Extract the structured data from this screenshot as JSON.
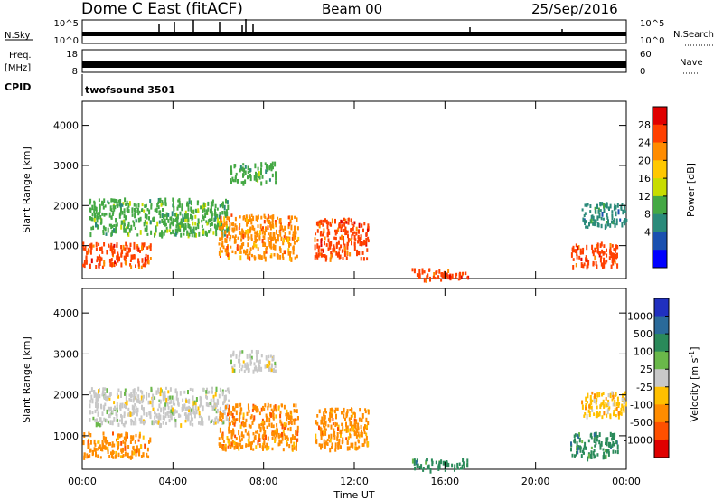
{
  "header": {
    "title": "Dome C East (fitACF)",
    "beam": "Beam 00",
    "date": "25/Sep/2016"
  },
  "small_panels": {
    "nsky_label": "N.Sky",
    "nsky_ticks": [
      "10^5",
      "10^0"
    ],
    "nsearch_label": "N.Search",
    "nsearch_ticks": [
      "10^5",
      "10^0"
    ],
    "freq_label": "Freq.",
    "freq_unit": "[MHz]",
    "freq_ticks": [
      "18",
      "8"
    ],
    "nave_label": "Nave",
    "nave_ticks": [
      "60",
      "0"
    ],
    "cpid_label": "CPID",
    "cpid_value": "twofsound 3501"
  },
  "chart_data": [
    {
      "type": "heatmap",
      "name": "power-panel",
      "ylabel": "Slant Range [km]",
      "ylim": [
        180,
        4600
      ],
      "yticks": [
        1000,
        2000,
        3000,
        4000
      ],
      "xlim": [
        0,
        24
      ],
      "colorbar": {
        "label": "Power [dB]",
        "ticks": [
          "28",
          "24",
          "20",
          "16",
          "12",
          "8",
          "4"
        ],
        "colors": [
          "#e00000",
          "#ff4000",
          "#ff8c00",
          "#ffc800",
          "#c8dc00",
          "#44a844",
          "#2a8a7a",
          "#1a50b0",
          "#0000ff"
        ]
      },
      "regions": [
        {
          "t0": 0.0,
          "t1": 3.0,
          "r0": 500,
          "r1": 1100,
          "value": 26
        },
        {
          "t0": 0.3,
          "t1": 6.5,
          "r0": 1300,
          "r1": 2200,
          "value": 14
        },
        {
          "t0": 6.0,
          "t1": 9.5,
          "r0": 700,
          "r1": 1800,
          "value": 24
        },
        {
          "t0": 6.5,
          "t1": 8.5,
          "r0": 2600,
          "r1": 3100,
          "value": 12
        },
        {
          "t0": 10.2,
          "t1": 12.6,
          "r0": 700,
          "r1": 1700,
          "value": 27
        },
        {
          "t0": 14.5,
          "t1": 17.0,
          "r0": 180,
          "r1": 450,
          "value": 28
        },
        {
          "t0": 21.5,
          "t1": 23.6,
          "r0": 500,
          "r1": 1100,
          "value": 26
        },
        {
          "t0": 22.0,
          "t1": 24.0,
          "r0": 1500,
          "r1": 2100,
          "value": 10
        }
      ]
    },
    {
      "type": "heatmap",
      "name": "velocity-panel",
      "ylabel": "Slant Range [km]",
      "ylim": [
        180,
        4600
      ],
      "yticks": [
        1000,
        2000,
        3000,
        4000
      ],
      "xlim": [
        0,
        24
      ],
      "xticks": [
        "00:00",
        "04:00",
        "08:00",
        "12:00",
        "16:00",
        "20:00",
        "00:00"
      ],
      "xlabel": "Time UT",
      "colorbar": {
        "label": "Velocity [m s^-1]",
        "ticks": [
          "1000",
          "500",
          "100",
          "25",
          "-25",
          "-100",
          "-500",
          "-1000"
        ],
        "colors": [
          "#2030c0",
          "#2a6a9a",
          "#2a8a5a",
          "#6ab84a",
          "#c8c8c8",
          "#ffc000",
          "#ff8c00",
          "#ff5000",
          "#e00000"
        ]
      },
      "regions": [
        {
          "t0": 0.0,
          "t1": 3.0,
          "r0": 500,
          "r1": 1100,
          "value": -300
        },
        {
          "t0": 0.3,
          "t1": 6.5,
          "r0": 1300,
          "r1": 2200,
          "value": 0
        },
        {
          "t0": 6.0,
          "t1": 9.5,
          "r0": 700,
          "r1": 1800,
          "value": -300
        },
        {
          "t0": 6.5,
          "t1": 8.5,
          "r0": 2600,
          "r1": 3100,
          "value": 0
        },
        {
          "t0": 10.2,
          "t1": 12.6,
          "r0": 700,
          "r1": 1700,
          "value": -300
        },
        {
          "t0": 14.5,
          "t1": 17.0,
          "r0": 180,
          "r1": 450,
          "value": 200
        },
        {
          "t0": 21.5,
          "t1": 23.6,
          "r0": 500,
          "r1": 1100,
          "value": 300
        },
        {
          "t0": 22.0,
          "t1": 24.0,
          "r0": 1500,
          "r1": 2100,
          "value": -100
        }
      ]
    }
  ]
}
